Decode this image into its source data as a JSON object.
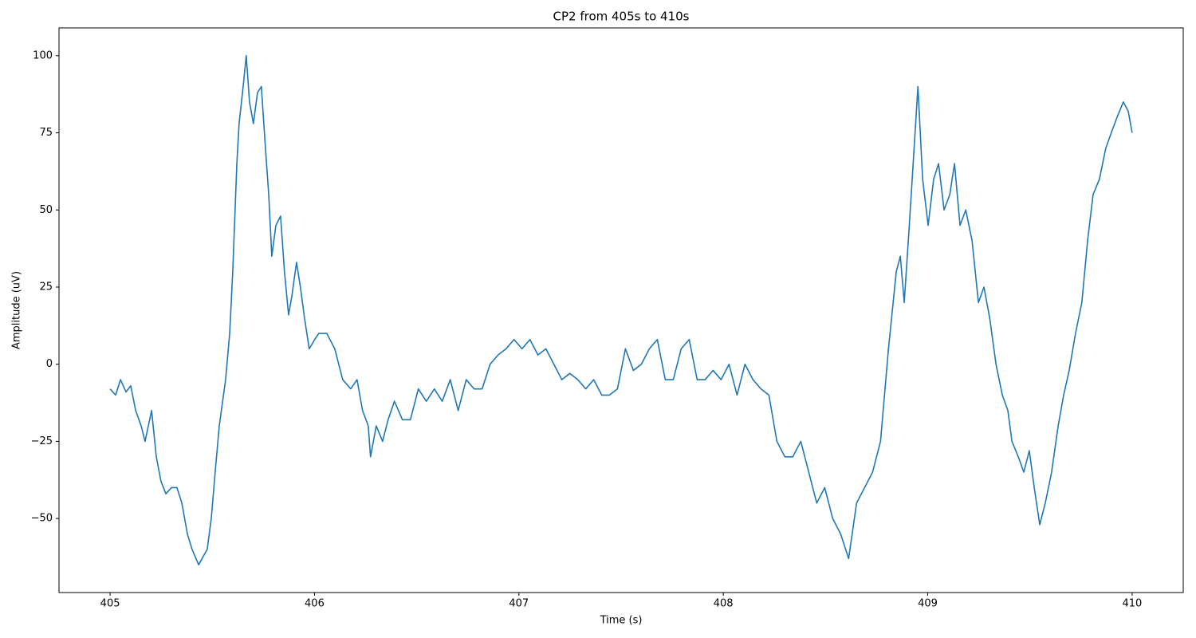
{
  "chart_data": {
    "type": "line",
    "title": "CP2 from 405s to 410s",
    "xlabel": "Time (s)",
    "ylabel": "Amplitude (uV)",
    "color": "#1f77b4",
    "grid": false,
    "xlim": [
      404.75,
      410.25
    ],
    "xticks": [
      405,
      406,
      407,
      408,
      409,
      410
    ],
    "ylim": [
      -74,
      109
    ],
    "yticks": [
      {
        "value": -50,
        "label": "−50"
      },
      {
        "value": -25,
        "label": "−25"
      },
      0,
      25,
      50,
      75,
      100
    ],
    "x": [
      405,
      405.027,
      405.051,
      405.078,
      405.101,
      405.125,
      405.152,
      405.171,
      405.203,
      405.226,
      405.249,
      405.273,
      405.3,
      405.327,
      405.351,
      405.378,
      405.401,
      405.433,
      405.475,
      405.495,
      405.514,
      405.534,
      405.565,
      405.585,
      405.6,
      405.62,
      405.631,
      405.651,
      405.666,
      405.682,
      405.701,
      405.721,
      405.74,
      405.76,
      405.776,
      405.791,
      405.811,
      405.834,
      405.853,
      405.873,
      405.889,
      405.912,
      405.931,
      405.951,
      405.974,
      406.001,
      406.021,
      406.06,
      406.099,
      406.138,
      406.177,
      406.208,
      406.235,
      406.263,
      406.274,
      406.302,
      406.333,
      406.36,
      406.391,
      406.43,
      406.469,
      406.508,
      406.547,
      406.586,
      406.625,
      406.664,
      406.703,
      406.742,
      406.781,
      406.82,
      406.859,
      406.898,
      406.937,
      406.976,
      407.015,
      407.054,
      407.093,
      407.132,
      407.171,
      407.21,
      407.249,
      407.288,
      407.327,
      407.366,
      407.405,
      407.443,
      407.482,
      407.521,
      407.56,
      407.599,
      407.638,
      407.677,
      407.716,
      407.755,
      407.794,
      407.833,
      407.872,
      407.911,
      407.95,
      407.989,
      408.028,
      408.067,
      408.106,
      408.145,
      408.184,
      408.223,
      408.262,
      408.301,
      408.34,
      408.379,
      408.418,
      408.457,
      408.496,
      408.535,
      408.574,
      408.613,
      408.652,
      408.691,
      408.73,
      408.769,
      408.808,
      408.846,
      408.866,
      408.885,
      408.905,
      408.924,
      408.952,
      408.975,
      409.002,
      409.029,
      409.053,
      409.08,
      409.108,
      409.131,
      409.158,
      409.186,
      409.217,
      409.248,
      409.275,
      409.303,
      409.334,
      409.365,
      409.392,
      409.412,
      409.443,
      409.47,
      409.497,
      409.521,
      409.548,
      409.575,
      409.606,
      409.638,
      409.665,
      409.692,
      409.723,
      409.754,
      409.782,
      409.809,
      409.84,
      409.871,
      409.898,
      409.926,
      409.957,
      409.981,
      410
    ],
    "values": [
      -8,
      -10,
      -5,
      -9,
      -7,
      -15,
      -20,
      -25,
      -15,
      -30,
      -38,
      -42,
      -40,
      -40,
      -45,
      -55,
      -60,
      -65,
      -60,
      -50,
      -35,
      -20,
      -5,
      10,
      30,
      65,
      78,
      90,
      100,
      85,
      78,
      88,
      90,
      70,
      55,
      35,
      45,
      48,
      30,
      16,
      22,
      33,
      25,
      15,
      5,
      8,
      10,
      10,
      5,
      -5,
      -8,
      -5,
      -15,
      -20,
      -30,
      -20,
      -25,
      -18,
      -12,
      -18,
      -18,
      -8,
      -12,
      -8,
      -12,
      -5,
      -15,
      -5,
      -8,
      -8,
      0,
      3,
      5,
      8,
      5,
      8,
      3,
      5,
      0,
      -5,
      -3,
      -5,
      -8,
      -5,
      -10,
      -10,
      -8,
      5,
      -2,
      0,
      5,
      8,
      -5,
      -5,
      5,
      8,
      -5,
      -5,
      -2,
      -5,
      0,
      -10,
      0,
      -5,
      -8,
      -10,
      -25,
      -30,
      -30,
      -25,
      -35,
      -45,
      -40,
      -50,
      -55,
      -63,
      -45,
      -40,
      -35,
      -25,
      5,
      30,
      35,
      20,
      40,
      60,
      90,
      60,
      45,
      60,
      65,
      50,
      55,
      65,
      45,
      50,
      40,
      20,
      25,
      15,
      0,
      -10,
      -15,
      -25,
      -30,
      -35,
      -28,
      -40,
      -52,
      -45,
      -35,
      -20,
      -10,
      -2,
      10,
      20,
      40,
      55,
      60,
      70,
      75,
      80,
      85,
      82,
      75
    ]
  }
}
